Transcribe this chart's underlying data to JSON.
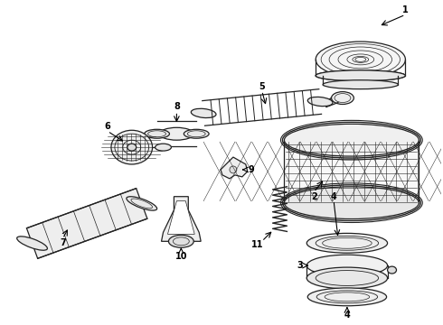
{
  "background_color": "#ffffff",
  "line_color": "#222222",
  "fig_width": 4.9,
  "fig_height": 3.6,
  "dpi": 100
}
